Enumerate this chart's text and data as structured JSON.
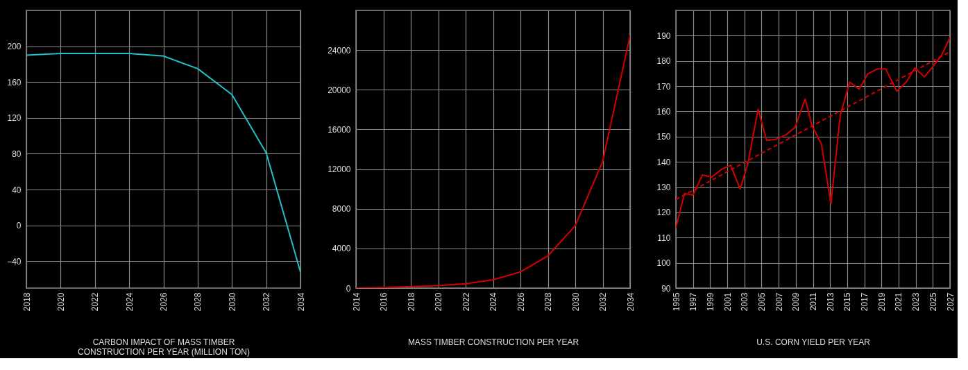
{
  "chart_data": [
    {
      "type": "line",
      "xlabel": "CARBON IMPACT OF MASS TIMBER CONSTRUCTION PER YEAR (MILLION TON)",
      "xlim": [
        2018,
        2034
      ],
      "xticks": [
        2018,
        2020,
        2022,
        2024,
        2026,
        2028,
        2030,
        2032,
        2034
      ],
      "ylim": [
        -70,
        240
      ],
      "yticks": [
        -40,
        0,
        40,
        80,
        120,
        160,
        200
      ],
      "grid": true,
      "marker": "none",
      "line_style": "solid",
      "x": [
        2018,
        2020,
        2022,
        2024,
        2026,
        2028,
        2030,
        2032,
        2034
      ],
      "series": [
        {
          "color": "#1fc2c6",
          "values": [
            190,
            192,
            192,
            192,
            189,
            175,
            146,
            81,
            -52
          ]
        }
      ]
    },
    {
      "type": "line",
      "xlabel": "MASS TIMBER CONSTRUCTION PER YEAR",
      "xlim": [
        2014,
        2034
      ],
      "xticks": [
        2014,
        2016,
        2018,
        2020,
        2022,
        2024,
        2026,
        2028,
        2030,
        2032,
        2034
      ],
      "ylim": [
        0,
        28000
      ],
      "yticks": [
        0,
        4000,
        8000,
        12000,
        16000,
        20000,
        24000
      ],
      "grid": true,
      "marker": "none",
      "line_style": "solid",
      "x": [
        2014,
        2016,
        2018,
        2020,
        2022,
        2024,
        2026,
        2028,
        2030,
        2032,
        2034
      ],
      "series": [
        {
          "color": "#d40000",
          "values": [
            0,
            50,
            150,
            250,
            430,
            840,
            1630,
            3240,
            6290,
            12770,
            25490
          ]
        }
      ]
    },
    {
      "type": "line",
      "xlabel": "U.S. CORN YIELD PER YEAR",
      "xlim": [
        1995,
        2027
      ],
      "xticks": [
        1995,
        1997,
        1999,
        2001,
        2003,
        2005,
        2007,
        2009,
        2011,
        2013,
        2015,
        2017,
        2019,
        2021,
        2023,
        2025,
        2027
      ],
      "ylim": [
        90,
        200
      ],
      "yticks": [
        90,
        100,
        110,
        120,
        130,
        140,
        150,
        160,
        170,
        180,
        190
      ],
      "grid": true,
      "marker": "none",
      "series": [
        {
          "color": "#d40000",
          "line_style": "solid",
          "x": [
            1995.0,
            1996.0,
            1997.0,
            1998.1,
            1999.2,
            2000.4,
            2001.4,
            2002.5,
            2003.4,
            2004.6,
            2005.6,
            2006.6,
            2007.8,
            2008.9,
            2010.1,
            2010.9,
            2012.0,
            2013.1,
            2014.2,
            2015.3,
            2016.4,
            2017.4,
            2018.5,
            2019.5,
            2020.8,
            2021.9,
            2022.9,
            2024.0,
            2024.9,
            2026.0,
            2027.0
          ],
          "values": [
            113.8,
            127.5,
            126.8,
            134.8,
            134.0,
            137.2,
            138.6,
            129.3,
            139.2,
            160.8,
            148.5,
            148.9,
            150.6,
            153.6,
            164.9,
            154.3,
            147.0,
            123.4,
            158.6,
            171.6,
            168.8,
            174.8,
            176.8,
            176.8,
            168.0,
            171.6,
            177.2,
            173.7,
            177.3,
            182.1,
            189.2
          ]
        },
        {
          "type": "line",
          "color": "#d40000",
          "line_style": "dashed",
          "x": [
            1995,
            2027
          ],
          "values": [
            125.1,
            183.6
          ]
        }
      ]
    }
  ]
}
